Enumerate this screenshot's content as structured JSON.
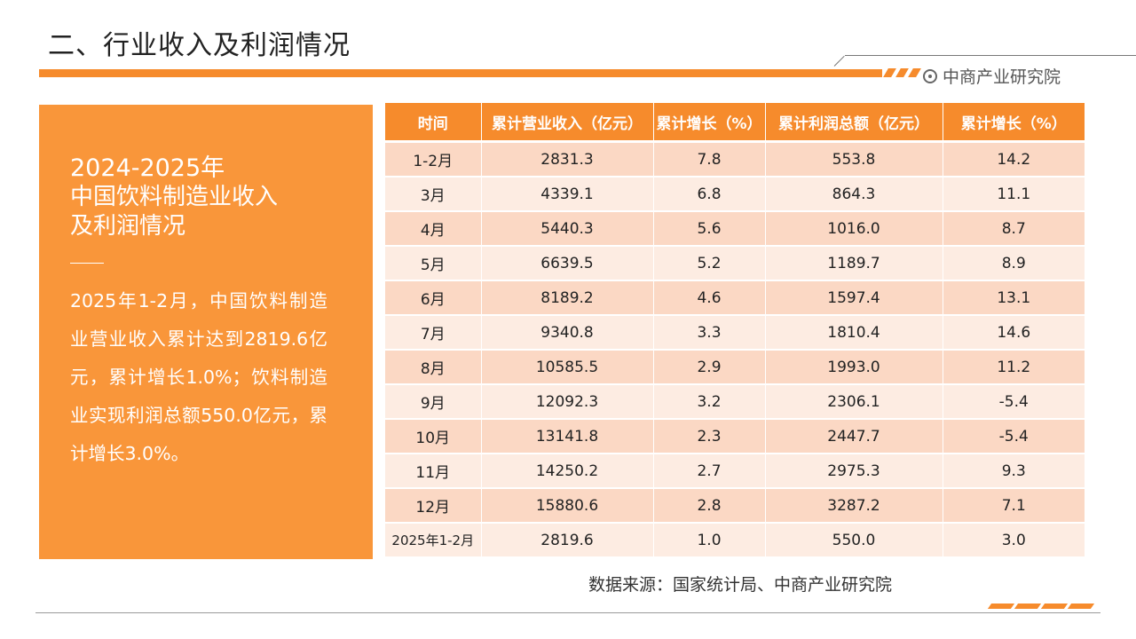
{
  "header": {
    "title": "二、行业收入及利润情况",
    "brand": "中商产业研究院",
    "brand_icon": "target-icon",
    "accent_color": "#f68b2c"
  },
  "panel": {
    "year_range": "2024-2025年",
    "heading_line1": "中国饮料制造业收入",
    "heading_line2": "及利润情况",
    "body": "2025年1-2月，中国饮料制造业营业收入累计达到2819.6亿元，累计增长1.0%；饮料制造业实现利润总额550.0亿元，累计增长3.0%。",
    "background_color": "#f9963a"
  },
  "table": {
    "headers": [
      "时间",
      "累计营业收入（亿元）",
      "累计增长（%）",
      "累计利润总额（亿元）",
      "累计增长（%）"
    ],
    "rows": [
      [
        "1-2月",
        "2831.3",
        "7.8",
        "553.8",
        "14.2"
      ],
      [
        "3月",
        "4339.1",
        "6.8",
        "864.3",
        "11.1"
      ],
      [
        "4月",
        "5440.3",
        "5.6",
        "1016.0",
        "8.7"
      ],
      [
        "5月",
        "6639.5",
        "5.2",
        "1189.7",
        "8.9"
      ],
      [
        "6月",
        "8189.2",
        "4.6",
        "1597.4",
        "13.1"
      ],
      [
        "7月",
        "9340.8",
        "3.3",
        "1810.4",
        "14.6"
      ],
      [
        "8月",
        "10585.5",
        "2.9",
        "1993.0",
        "11.2"
      ],
      [
        "9月",
        "12092.3",
        "3.2",
        "2306.1",
        "-5.4"
      ],
      [
        "10月",
        "13141.8",
        "2.3",
        "2447.7",
        "-5.4"
      ],
      [
        "11月",
        "14250.2",
        "2.7",
        "2975.3",
        "9.3"
      ],
      [
        "12月",
        "15880.6",
        "2.8",
        "3287.2",
        "7.1"
      ],
      [
        "2025年1-2月",
        "2819.6",
        "1.0",
        "550.0",
        "3.0"
      ]
    ]
  },
  "footer": {
    "source": "数据来源：国家统计局、中商产业研究院"
  }
}
